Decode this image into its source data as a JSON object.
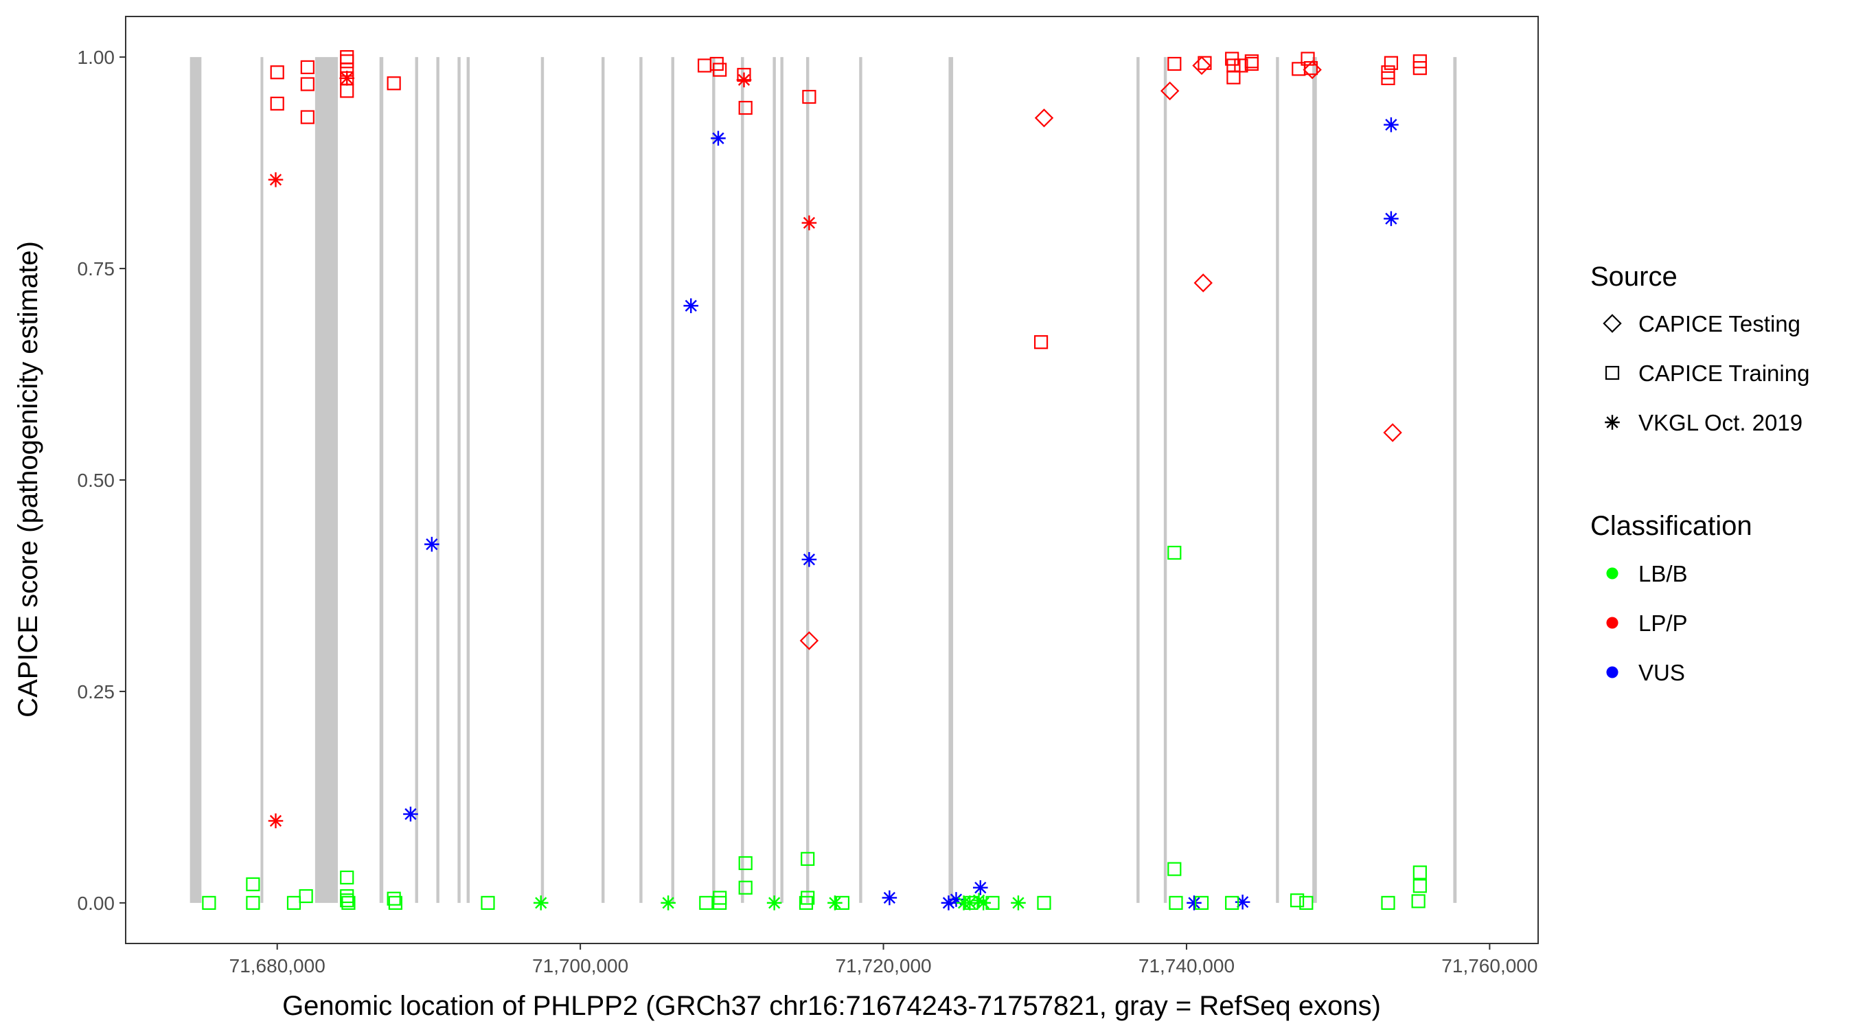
{
  "chart_data": {
    "type": "scatter",
    "xlabel": "Genomic location of PHLPP2 (GRCh37 chr16:71674243-71757821, gray = RefSeq exons)",
    "ylabel": "CAPICE score (pathogenicity estimate)",
    "xlim": [
      71670000,
      71763200
    ],
    "ylim": [
      -0.048,
      1.048
    ],
    "x_ticks": [
      71680000,
      71700000,
      71720000,
      71740000,
      71760000
    ],
    "x_tick_labels": [
      "71,680,000",
      "71,700,000",
      "71,720,000",
      "71,740,000",
      "71,760,000"
    ],
    "y_ticks": [
      0,
      0.25,
      0.5,
      0.75,
      1
    ],
    "y_tick_labels": [
      "0.00",
      "0.25",
      "0.50",
      "0.75",
      "1.00"
    ],
    "grid": false,
    "legend_position": "right",
    "exon_color": "#c8c8c8",
    "exons": [
      [
        71674243,
        71675000
      ],
      [
        71678900,
        71679000
      ],
      [
        71682500,
        71684000
      ],
      [
        71686750,
        71687000
      ],
      [
        71689100,
        71689300
      ],
      [
        71690500,
        71690700
      ],
      [
        71691900,
        71692100
      ],
      [
        71692500,
        71692700
      ],
      [
        71697400,
        71697600
      ],
      [
        71701400,
        71701600
      ],
      [
        71703900,
        71704100
      ],
      [
        71706000,
        71706200
      ],
      [
        71708700,
        71708900
      ],
      [
        71710600,
        71710800
      ],
      [
        71712700,
        71712900
      ],
      [
        71713200,
        71713400
      ],
      [
        71714900,
        71715100
      ],
      [
        71718400,
        71718600
      ],
      [
        71724300,
        71724600
      ],
      [
        71736700,
        71736900
      ],
      [
        71738500,
        71738700
      ],
      [
        71745900,
        71746100
      ],
      [
        71748300,
        71748600
      ],
      [
        71757600,
        71757821
      ]
    ],
    "legends": [
      {
        "title": "Source",
        "entries": [
          {
            "label": "CAPICE Testing",
            "shape": "diamond"
          },
          {
            "label": "CAPICE Training",
            "shape": "square"
          },
          {
            "label": "VKGL Oct. 2019",
            "shape": "star"
          }
        ]
      },
      {
        "title": "Classification",
        "entries": [
          {
            "label": "LB/B",
            "color": "#00ff00"
          },
          {
            "label": "LP/P",
            "color": "#ff0000"
          },
          {
            "label": "VUS",
            "color": "#0000ff"
          }
        ]
      }
    ],
    "series": [
      {
        "source": "CAPICE Training",
        "classification": "LP/P",
        "shape": "square",
        "color": "#ff0000",
        "points": [
          [
            71680000,
            0.982
          ],
          [
            71680000,
            0.945
          ],
          [
            71682000,
            0.988
          ],
          [
            71682000,
            0.968
          ],
          [
            71682000,
            0.929
          ],
          [
            71684600,
            1.0
          ],
          [
            71684600,
            0.995
          ],
          [
            71684600,
            0.985
          ],
          [
            71684600,
            0.975
          ],
          [
            71684600,
            0.96
          ],
          [
            71687700,
            0.969
          ],
          [
            71708200,
            0.99
          ],
          [
            71709000,
            0.992
          ],
          [
            71709200,
            0.985
          ],
          [
            71710800,
            0.979
          ],
          [
            71710900,
            0.94
          ],
          [
            71715100,
            0.953
          ],
          [
            71730400,
            0.663
          ],
          [
            71739200,
            0.992
          ],
          [
            71741200,
            0.993
          ],
          [
            71743000,
            0.998
          ],
          [
            71743100,
            0.99
          ],
          [
            71743100,
            0.976
          ],
          [
            71743600,
            0.99
          ],
          [
            71744300,
            0.995
          ],
          [
            71744300,
            0.992
          ],
          [
            71747400,
            0.986
          ],
          [
            71748000,
            0.998
          ],
          [
            71748200,
            0.987
          ],
          [
            71753300,
            0.982
          ],
          [
            71753300,
            0.975
          ],
          [
            71753500,
            0.993
          ],
          [
            71755400,
            0.995
          ],
          [
            71755400,
            0.987
          ]
        ]
      },
      {
        "source": "CAPICE Testing",
        "classification": "LP/P",
        "shape": "diamond",
        "color": "#ff0000",
        "points": [
          [
            71715100,
            0.31
          ],
          [
            71730600,
            0.928
          ],
          [
            71738900,
            0.96
          ],
          [
            71741000,
            0.99
          ],
          [
            71741100,
            0.733
          ],
          [
            71753600,
            0.556
          ],
          [
            71748300,
            0.985
          ]
        ]
      },
      {
        "source": "VKGL Oct. 2019",
        "classification": "LP/P",
        "shape": "star",
        "color": "#ff0000",
        "points": [
          [
            71679900,
            0.855
          ],
          [
            71679900,
            0.097
          ],
          [
            71684600,
            0.975
          ],
          [
            71710800,
            0.973
          ],
          [
            71715100,
            0.804
          ]
        ]
      },
      {
        "source": "VKGL Oct. 2019",
        "classification": "VUS",
        "shape": "star",
        "color": "#0000ff",
        "points": [
          [
            71690200,
            0.424
          ],
          [
            71688800,
            0.105
          ],
          [
            71707300,
            0.706
          ],
          [
            71709100,
            0.904
          ],
          [
            71715100,
            0.406
          ],
          [
            71720400,
            0.006
          ],
          [
            71724300,
            0.0
          ],
          [
            71724800,
            0.004
          ],
          [
            71726400,
            0.018
          ],
          [
            71740500,
            0.0
          ],
          [
            71743700,
            0.001
          ],
          [
            71753500,
            0.92
          ],
          [
            71753500,
            0.809
          ]
        ]
      },
      {
        "source": "CAPICE Training",
        "classification": "LB/B",
        "shape": "square",
        "color": "#00ff00",
        "points": [
          [
            71675500,
            0.0
          ],
          [
            71678400,
            0.0
          ],
          [
            71678400,
            0.022
          ],
          [
            71681100,
            0.0
          ],
          [
            71681900,
            0.008
          ],
          [
            71684600,
            0.03
          ],
          [
            71684600,
            0.008
          ],
          [
            71684600,
            0.003
          ],
          [
            71684700,
            0.0
          ],
          [
            71687700,
            0.005
          ],
          [
            71687800,
            0.0
          ],
          [
            71693900,
            0.0
          ],
          [
            71708300,
            0.0
          ],
          [
            71709200,
            0.006
          ],
          [
            71709200,
            0.0
          ],
          [
            71710900,
            0.047
          ],
          [
            71710900,
            0.018
          ],
          [
            71715000,
            0.052
          ],
          [
            71715000,
            0.006
          ],
          [
            71714900,
            0.0
          ],
          [
            71717300,
            0.0
          ],
          [
            71725800,
            0.0
          ],
          [
            71727200,
            0.0
          ],
          [
            71730600,
            0.0
          ],
          [
            71739200,
            0.414
          ],
          [
            71739200,
            0.04
          ],
          [
            71739300,
            0.0
          ],
          [
            71741000,
            0.0
          ],
          [
            71743000,
            0.0
          ],
          [
            71747300,
            0.003
          ],
          [
            71747900,
            0.0
          ],
          [
            71753300,
            0.0
          ],
          [
            71755400,
            0.036
          ],
          [
            71755400,
            0.02
          ],
          [
            71755300,
            0.002
          ]
        ]
      },
      {
        "source": "VKGL Oct. 2019",
        "classification": "LB/B",
        "shape": "star",
        "color": "#00ff00",
        "points": [
          [
            71697400,
            0.0
          ],
          [
            71705800,
            0.0
          ],
          [
            71712800,
            0.0
          ],
          [
            71716800,
            0.0
          ],
          [
            71725300,
            0.0
          ],
          [
            71725700,
            0.0
          ],
          [
            71726300,
            0.003
          ],
          [
            71726600,
            0.0
          ],
          [
            71728900,
            0.0
          ]
        ]
      }
    ]
  }
}
